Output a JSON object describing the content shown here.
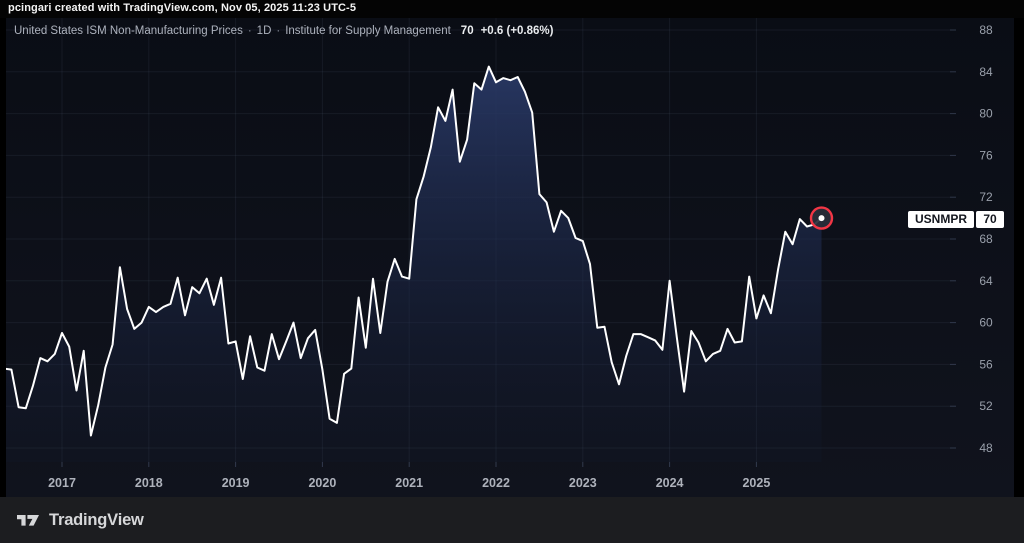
{
  "top_bar": {
    "text": "pcingari created with TradingView.com, Nov 05, 2025 11:23 UTC-5"
  },
  "legend": {
    "title": "United States ISM Non-Manufacturing Prices",
    "separator": "·",
    "interval": "1D",
    "source": "Institute for Supply Management",
    "value": "70",
    "change": "+0.6 (+0.86%)"
  },
  "price_label": {
    "symbol": "USNMPR",
    "value": "70"
  },
  "footer": {
    "brand": "TradingView"
  },
  "colors": {
    "line": "#ffffff",
    "accent_red": "#f23645",
    "marker_fill": "rgba(41,46,58,0.92)",
    "fill_top": "#2a3a68",
    "fill_bottom": "#141d36",
    "badge_bg": "#ffffff",
    "badge_text": "#14171f"
  },
  "chart_data": {
    "type": "area",
    "title": "United States ISM Non-Manufacturing Prices",
    "interval": "1D",
    "source": "Institute for Supply Management",
    "last_value": 70,
    "change": 0.6,
    "change_pct": "+0.86%",
    "ylim": [
      46.5,
      89.5
    ],
    "y_ticks": [
      88,
      84,
      80,
      76,
      72,
      68,
      64,
      60,
      56,
      52,
      48
    ],
    "x_ticks": [
      2017,
      2018,
      2019,
      2020,
      2021,
      2022,
      2023,
      2024,
      2025
    ],
    "grid": true,
    "legend_position": "top-left",
    "dates": [
      "2016-05",
      "2016-06",
      "2016-07",
      "2016-08",
      "2016-09",
      "2016-10",
      "2016-11",
      "2016-12",
      "2017-01",
      "2017-02",
      "2017-03",
      "2017-04",
      "2017-05",
      "2017-06",
      "2017-07",
      "2017-08",
      "2017-09",
      "2017-10",
      "2017-11",
      "2017-12",
      "2018-01",
      "2018-02",
      "2018-03",
      "2018-04",
      "2018-05",
      "2018-06",
      "2018-07",
      "2018-08",
      "2018-09",
      "2018-10",
      "2018-11",
      "2018-12",
      "2019-01",
      "2019-02",
      "2019-03",
      "2019-04",
      "2019-05",
      "2019-06",
      "2019-07",
      "2019-08",
      "2019-09",
      "2019-10",
      "2019-11",
      "2019-12",
      "2020-01",
      "2020-02",
      "2020-03",
      "2020-04",
      "2020-05",
      "2020-06",
      "2020-07",
      "2020-08",
      "2020-09",
      "2020-10",
      "2020-11",
      "2020-12",
      "2021-01",
      "2021-02",
      "2021-03",
      "2021-04",
      "2021-05",
      "2021-06",
      "2021-07",
      "2021-08",
      "2021-09",
      "2021-10",
      "2021-11",
      "2021-12",
      "2022-01",
      "2022-02",
      "2022-03",
      "2022-04",
      "2022-05",
      "2022-06",
      "2022-07",
      "2022-08",
      "2022-09",
      "2022-10",
      "2022-11",
      "2022-12",
      "2023-01",
      "2023-02",
      "2023-03",
      "2023-04",
      "2023-05",
      "2023-06",
      "2023-07",
      "2023-08",
      "2023-09",
      "2023-10",
      "2023-11",
      "2023-12",
      "2024-01",
      "2024-02",
      "2024-03",
      "2024-04",
      "2024-05",
      "2024-06",
      "2024-07",
      "2024-08",
      "2024-09",
      "2024-10",
      "2024-11",
      "2024-12",
      "2025-01",
      "2025-02",
      "2025-03",
      "2025-04",
      "2025-05",
      "2025-06",
      "2025-07",
      "2025-08",
      "2025-09",
      "2025-10"
    ],
    "values": [
      55.6,
      55.5,
      51.9,
      51.8,
      54.0,
      56.6,
      56.3,
      57.0,
      59.0,
      57.7,
      53.5,
      57.3,
      49.2,
      52.1,
      55.7,
      57.9,
      65.3,
      61.3,
      59.4,
      60.0,
      61.5,
      61.0,
      61.5,
      61.8,
      64.3,
      60.7,
      63.4,
      62.8,
      64.2,
      61.7,
      64.3,
      58.0,
      58.2,
      54.6,
      58.7,
      55.7,
      55.4,
      58.9,
      56.5,
      58.2,
      60.0,
      56.6,
      58.5,
      59.3,
      55.5,
      50.8,
      50.4,
      55.1,
      55.6,
      62.4,
      57.6,
      64.2,
      59.0,
      63.9,
      66.1,
      64.4,
      64.2,
      71.8,
      74.0,
      76.8,
      80.6,
      79.3,
      82.3,
      75.4,
      77.5,
      82.9,
      82.3,
      84.5,
      83.0,
      83.4,
      83.2,
      83.5,
      82.1,
      80.1,
      72.3,
      71.5,
      68.7,
      70.7,
      70.0,
      68.1,
      67.8,
      65.6,
      59.5,
      59.6,
      56.2,
      54.1,
      56.8,
      58.9,
      58.9,
      58.6,
      58.3,
      57.4,
      64.0,
      58.6,
      53.4,
      59.2,
      58.1,
      56.3,
      57.0,
      57.3,
      59.4,
      58.1,
      58.2,
      64.4,
      60.4,
      62.6,
      60.9,
      65.1,
      68.7,
      67.5,
      69.9,
      69.2,
      69.4,
      70.0
    ]
  }
}
